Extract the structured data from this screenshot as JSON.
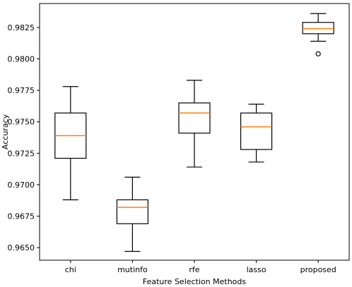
{
  "chart_data": {
    "type": "box",
    "xlabel": "Feature Selection Methods",
    "ylabel": "Accuracy",
    "ylim": [
      0.964,
      0.9844
    ],
    "yticks": [
      "0.9650",
      "0.9675",
      "0.9700",
      "0.9725",
      "0.9750",
      "0.9775",
      "0.9800",
      "0.9825"
    ],
    "ytick_values": [
      0.965,
      0.9675,
      0.97,
      0.9725,
      0.975,
      0.9775,
      0.98,
      0.9825
    ],
    "categories": [
      "chi",
      "mutinfo",
      "rfe",
      "lasso",
      "proposed"
    ],
    "boxes": [
      {
        "category": "chi",
        "whisker_low": 0.9688,
        "q1": 0.9721,
        "median": 0.9739,
        "q3": 0.9757,
        "whisker_high": 0.9778,
        "outliers": []
      },
      {
        "category": "mutinfo",
        "whisker_low": 0.9647,
        "q1": 0.9669,
        "median": 0.9682,
        "q3": 0.9688,
        "whisker_high": 0.9706,
        "outliers": []
      },
      {
        "category": "rfe",
        "whisker_low": 0.9714,
        "q1": 0.9741,
        "median": 0.9757,
        "q3": 0.9765,
        "whisker_high": 0.9783,
        "outliers": []
      },
      {
        "category": "lasso",
        "whisker_low": 0.9718,
        "q1": 0.9728,
        "median": 0.9746,
        "q3": 0.9757,
        "whisker_high": 0.9764,
        "outliers": []
      },
      {
        "category": "proposed",
        "whisker_low": 0.9814,
        "q1": 0.982,
        "median": 0.9824,
        "q3": 0.9829,
        "whisker_high": 0.9836,
        "outliers": [
          0.9804
        ]
      }
    ],
    "grid": false,
    "colors": {
      "box": "#000000",
      "median": "#ff7f0e"
    }
  }
}
